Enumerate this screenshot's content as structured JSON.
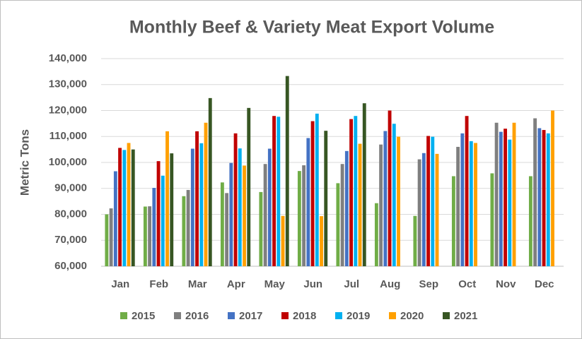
{
  "chart_data": {
    "type": "bar",
    "title": "Monthly Beef & Variety Meat Export Volume",
    "y_label": "Metric Tons",
    "categories": [
      "Jan",
      "Feb",
      "Mar",
      "Apr",
      "May",
      "Jun",
      "Jul",
      "Aug",
      "Sep",
      "Oct",
      "Nov",
      "Dec"
    ],
    "series": [
      {
        "name": "2015",
        "color": "#70ad47",
        "values": [
          80000,
          83000,
          87000,
          92300,
          88600,
          96700,
          92000,
          84300,
          79400,
          94700,
          95800,
          94700
        ]
      },
      {
        "name": "2016",
        "color": "#7f7f7f",
        "values": [
          82300,
          83100,
          89400,
          88200,
          99400,
          98900,
          99400,
          106900,
          101200,
          106000,
          115300,
          117000
        ]
      },
      {
        "name": "2017",
        "color": "#4472c4",
        "values": [
          96600,
          90200,
          105300,
          99800,
          105300,
          109400,
          104400,
          112100,
          103600,
          111200,
          111800,
          113200
        ]
      },
      {
        "name": "2018",
        "color": "#c00000",
        "values": [
          105600,
          100500,
          112000,
          111200,
          117900,
          115900,
          116700,
          120000,
          110200,
          117900,
          113000,
          112500
        ]
      },
      {
        "name": "2019",
        "color": "#00b0f0",
        "values": [
          104800,
          94900,
          107400,
          105400,
          117600,
          118800,
          117900,
          114900,
          109900,
          108200,
          108800,
          111200
        ]
      },
      {
        "name": "2020",
        "color": "#ffa000",
        "values": [
          107500,
          112000,
          115300,
          98800,
          79400,
          79300,
          107200,
          109900,
          103300,
          107500,
          115300,
          120000
        ]
      },
      {
        "name": "2021",
        "color": "#375623",
        "values": [
          105000,
          103500,
          124800,
          121000,
          133300,
          112200,
          122800,
          null,
          null,
          null,
          null,
          null
        ]
      }
    ],
    "ylim": [
      60000,
      140000
    ],
    "yticks": [
      {
        "value": 60000,
        "label": "60,000"
      },
      {
        "value": 70000,
        "label": "70,000"
      },
      {
        "value": 80000,
        "label": "80,000"
      },
      {
        "value": 90000,
        "label": "90,000"
      },
      {
        "value": 100000,
        "label": "100,000"
      },
      {
        "value": 110000,
        "label": "110,000"
      },
      {
        "value": 120000,
        "label": "120,000"
      },
      {
        "value": 130000,
        "label": "130,000"
      },
      {
        "value": 140000,
        "label": "140,000"
      }
    ],
    "grid": true
  }
}
